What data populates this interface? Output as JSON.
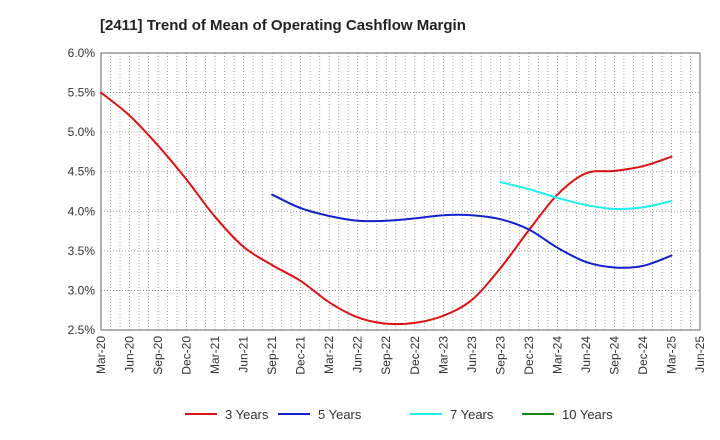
{
  "chart_data": {
    "type": "line",
    "title": "[2411]  Trend of Mean of Operating Cashflow Margin",
    "xlabel": "",
    "ylabel": "",
    "ylim": [
      2.5,
      6.0
    ],
    "yticks": [
      2.5,
      3.0,
      3.5,
      4.0,
      4.5,
      5.0,
      5.5,
      6.0
    ],
    "ytick_labels": [
      "2.5%",
      "3.0%",
      "3.5%",
      "4.0%",
      "4.5%",
      "5.0%",
      "5.5%",
      "6.0%"
    ],
    "categories": [
      "Mar-20",
      "Jun-20",
      "Sep-20",
      "Dec-20",
      "Mar-21",
      "Jun-21",
      "Sep-21",
      "Dec-21",
      "Mar-22",
      "Jun-22",
      "Sep-22",
      "Dec-22",
      "Mar-23",
      "Jun-23",
      "Sep-23",
      "Dec-23",
      "Mar-24",
      "Jun-24",
      "Sep-24",
      "Dec-24",
      "Mar-25",
      "Jun-25"
    ],
    "grid": true,
    "legend_position": "bottom",
    "series": [
      {
        "name": "3 Years",
        "color": "#dd1111",
        "values": [
          5.5,
          5.21,
          4.83,
          4.4,
          3.93,
          3.55,
          3.32,
          3.12,
          2.85,
          2.66,
          2.58,
          2.59,
          2.68,
          2.88,
          3.28,
          3.76,
          4.21,
          4.48,
          4.51,
          4.57,
          4.69,
          null
        ]
      },
      {
        "name": "5 Years",
        "color": "#1122cc",
        "values": [
          null,
          null,
          null,
          null,
          null,
          null,
          4.21,
          4.04,
          3.94,
          3.88,
          3.88,
          3.91,
          3.95,
          3.95,
          3.9,
          3.77,
          3.54,
          3.36,
          3.29,
          3.31,
          3.44,
          null
        ]
      },
      {
        "name": "7 Years",
        "color": "#22eeee",
        "values": [
          null,
          null,
          null,
          null,
          null,
          null,
          null,
          null,
          null,
          null,
          null,
          null,
          null,
          null,
          4.37,
          4.28,
          4.17,
          4.08,
          4.03,
          4.05,
          4.13,
          null
        ]
      },
      {
        "name": "10 Years",
        "color": "#118811",
        "values": [
          null,
          null,
          null,
          null,
          null,
          null,
          null,
          null,
          null,
          null,
          null,
          null,
          null,
          null,
          null,
          null,
          null,
          null,
          null,
          null,
          null,
          null
        ]
      }
    ]
  }
}
